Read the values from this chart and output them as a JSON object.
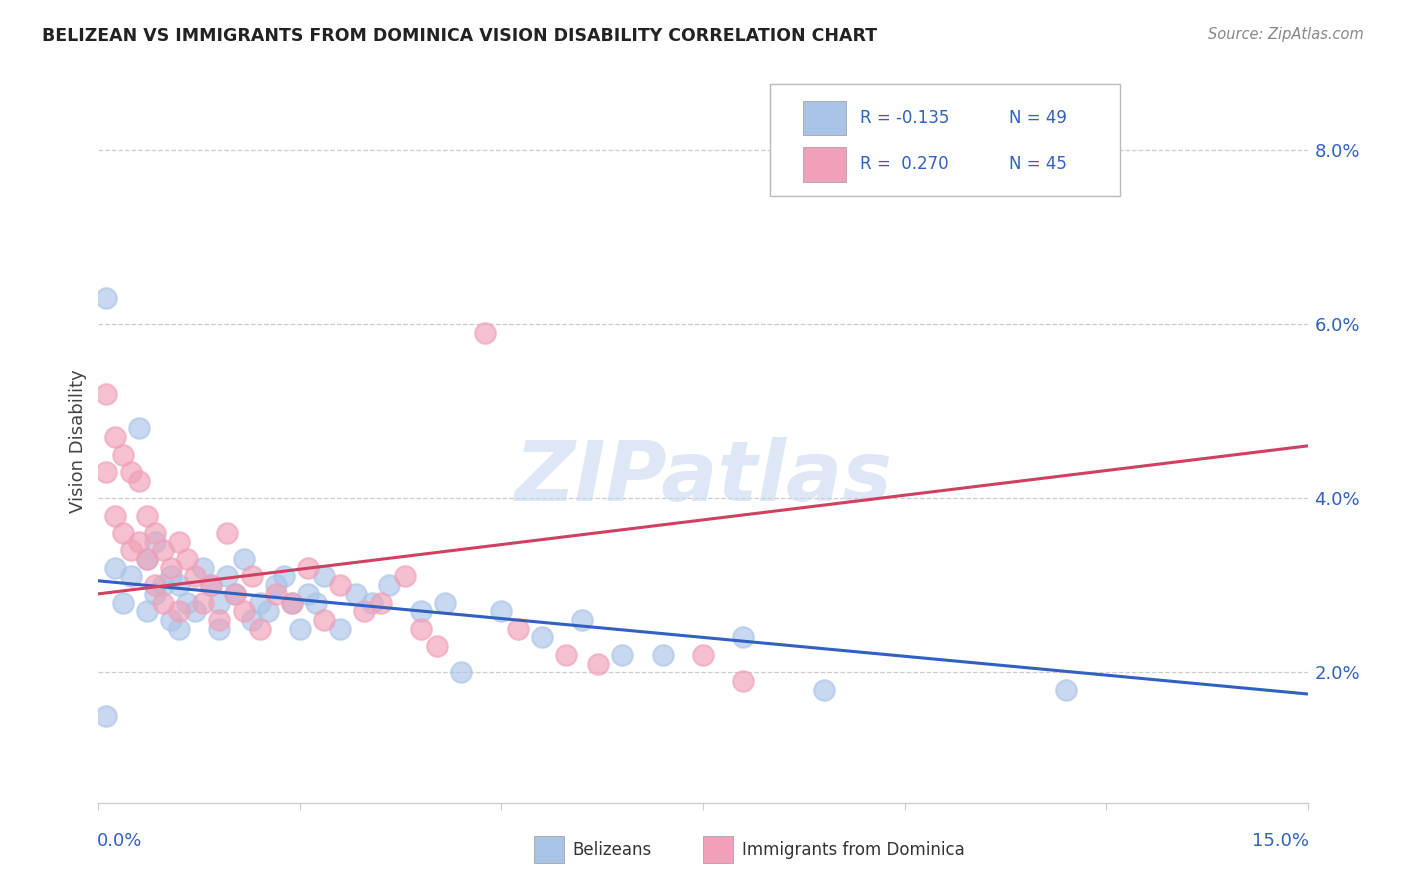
{
  "title": "BELIZEAN VS IMMIGRANTS FROM DOMINICA VISION DISABILITY CORRELATION CHART",
  "source": "Source: ZipAtlas.com",
  "ylabel": "Vision Disability",
  "ytick_values": [
    0.02,
    0.04,
    0.06,
    0.08
  ],
  "ytick_labels": [
    "2.0%",
    "4.0%",
    "6.0%",
    "8.0%"
  ],
  "xmin": 0.0,
  "xmax": 0.15,
  "ymin": 0.005,
  "ymax": 0.088,
  "blue_color": "#aac4e8",
  "pink_color": "#f0a0b8",
  "blue_line_color": "#3060c0",
  "pink_line_color": "#d04060",
  "blue_line_y0": 0.0305,
  "blue_line_y1": 0.0175,
  "pink_line_y0": 0.029,
  "pink_line_y1": 0.046,
  "watermark": "ZIPatlas",
  "watermark_color": "#c8d8ef",
  "grid_color": "#cccccc",
  "spine_color": "#cccccc"
}
